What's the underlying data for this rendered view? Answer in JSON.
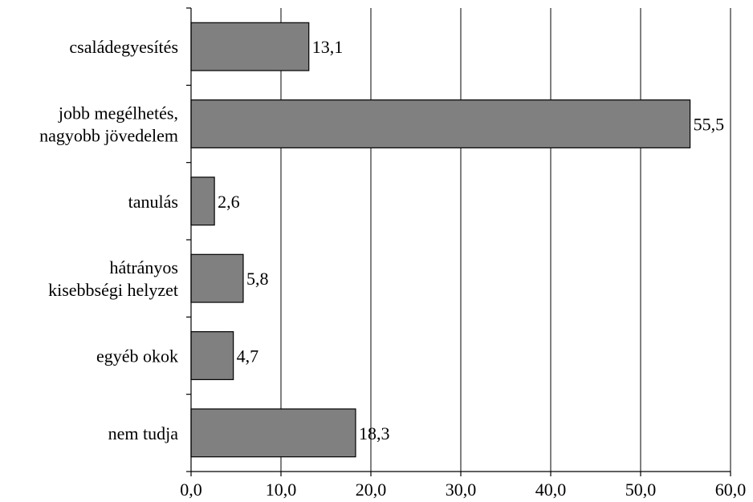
{
  "chart_data": {
    "type": "bar",
    "orientation": "horizontal",
    "title": "",
    "xlabel": "",
    "ylabel": "",
    "categories": [
      [
        "családegyesítés"
      ],
      [
        "jobb megélhetés,",
        "nagyobb jövedelem"
      ],
      [
        "tanulás"
      ],
      [
        "hátrányos",
        "kisebbségi helyzet"
      ],
      [
        "egyéb okok"
      ],
      [
        "nem tudja"
      ]
    ],
    "values": [
      13.1,
      55.5,
      2.6,
      5.8,
      4.7,
      18.3
    ],
    "value_labels": [
      "13,1",
      "55,5",
      "2,6",
      "5,8",
      "4,7",
      "18,3"
    ],
    "xlim": [
      0,
      60
    ],
    "xticks": [
      0,
      10,
      20,
      30,
      40,
      50,
      60
    ],
    "xtick_labels": [
      "0,0",
      "10,0",
      "20,0",
      "30,0",
      "40,0",
      "50,0",
      "60,0"
    ],
    "grid": "vertical",
    "legend": "none",
    "colors": {
      "bar_fill": "#808080",
      "bar_stroke": "#000000",
      "grid": "#000000",
      "text": "#000000",
      "background": "#ffffff"
    }
  }
}
